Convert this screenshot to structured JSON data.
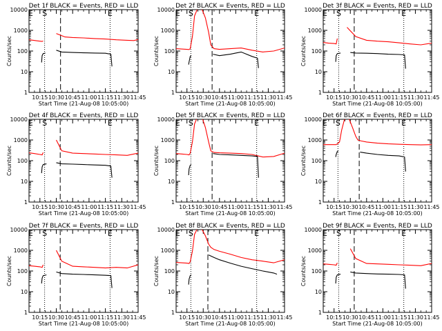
{
  "figure": {
    "x_tick_labels": [
      "10:15",
      "10:30",
      "10:45",
      "11:00",
      "11:15",
      "11:30",
      "11:45"
    ],
    "xlabel": "Start Time (21-Aug-08 10:05:00)",
    "ylabel": "Counts/sec",
    "y_tick_labels": [
      "1",
      "10",
      "100",
      "1000",
      "10000"
    ]
  },
  "chart_data": [
    {
      "type": "line",
      "title": "Det 1f BLACK = Events, RED = LLD",
      "series": [
        {
          "color": "#ff0000",
          "x": [
            0,
            4,
            8,
            10,
            12,
            13,
            20,
            25,
            33,
            40,
            50,
            60,
            70,
            80,
            90,
            96,
            100
          ],
          "y": [
            350,
            330,
            310,
            300,
            290,
            310,
            null,
            700,
            480,
            450,
            430,
            400,
            380,
            350,
            330,
            320,
            360
          ]
        },
        {
          "color": "#000000",
          "x": [
            11.5,
            12,
            13,
            15,
            20,
            25,
            30,
            40,
            50,
            60,
            70,
            75,
            76
          ],
          "y": [
            28,
            60,
            75,
            80,
            null,
            110,
            90,
            85,
            82,
            80,
            78,
            70,
            18
          ]
        }
      ],
      "markers": {
        "dotted": [
          14.3,
          74.3
        ],
        "dashed": [
          28.9
        ]
      },
      "labels": [
        "E",
        "S",
        "E"
      ]
    },
    {
      "type": "line",
      "title": "Det 2f BLACK = Events, RED = LLD",
      "series": [
        {
          "color": "#ff0000",
          "x": [
            0,
            5,
            10,
            12,
            13,
            15,
            17,
            20,
            24,
            27,
            30,
            32,
            35,
            40,
            50,
            60,
            70,
            80,
            90,
            100
          ],
          "y": [
            130,
            125,
            120,
            118,
            130,
            500,
            5000,
            12000,
            10000,
            4000,
            800,
            200,
            130,
            120,
            130,
            140,
            110,
            90,
            100,
            140
          ]
        },
        {
          "color": "#000000",
          "x": [
            11.5,
            12,
            13,
            14,
            null,
            34,
            40,
            50,
            55,
            60,
            70,
            75,
            76
          ],
          "y": [
            22,
            30,
            55,
            60,
            null,
            70,
            60,
            70,
            80,
            90,
            55,
            45,
            15
          ]
        }
      ],
      "markers": {
        "dotted": [
          13.6,
          74.3
        ],
        "dashed": [
          33.2
        ]
      },
      "labels": [
        "E",
        "S",
        "E"
      ]
    },
    {
      "type": "line",
      "title": "Det 3f BLACK = Events, RED = LLD",
      "series": [
        {
          "color": "#ff0000",
          "x": [
            0,
            5,
            10,
            12,
            13,
            20,
            22,
            30,
            40,
            50,
            60,
            70,
            80,
            90,
            100
          ],
          "y": [
            260,
            240,
            230,
            220,
            400,
            null,
            1400,
            500,
            330,
            300,
            280,
            250,
            220,
            200,
            240
          ]
        },
        {
          "color": "#000000",
          "x": [
            11.5,
            12,
            13,
            16,
            null,
            25,
            30,
            40,
            50,
            60,
            70,
            75,
            76
          ],
          "y": [
            30,
            60,
            75,
            80,
            null,
            85,
            80,
            78,
            75,
            70,
            68,
            65,
            14
          ]
        }
      ],
      "markers": {
        "dotted": [
          14.3,
          74.3
        ],
        "dashed": [
          28.6
        ]
      },
      "labels": [
        "E",
        "S",
        "E"
      ]
    },
    {
      "type": "line",
      "title": "Det 4f BLACK = Events, RED = LLD",
      "series": [
        {
          "color": "#ff0000",
          "x": [
            0,
            5,
            10,
            12,
            13,
            20,
            25,
            30,
            40,
            50,
            60,
            70,
            80,
            90,
            100
          ],
          "y": [
            240,
            220,
            200,
            190,
            250,
            null,
            1000,
            300,
            230,
            220,
            210,
            200,
            190,
            180,
            230
          ]
        },
        {
          "color": "#000000",
          "x": [
            11.5,
            12,
            13,
            16,
            null,
            25,
            30,
            40,
            50,
            60,
            70,
            75,
            76
          ],
          "y": [
            25,
            50,
            65,
            70,
            null,
            80,
            70,
            68,
            65,
            62,
            60,
            55,
            15
          ]
        }
      ],
      "markers": {
        "dotted": [
          14.3,
          74.3
        ],
        "dashed": [
          28.6
        ]
      },
      "labels": [
        "E",
        "S",
        "E"
      ]
    },
    {
      "type": "line",
      "title": "Det 5f BLACK = Events, RED = LLD",
      "series": [
        {
          "color": "#ff0000",
          "x": [
            0,
            5,
            10,
            12,
            13,
            15,
            17,
            20,
            24,
            27,
            30,
            32,
            35,
            40,
            50,
            60,
            70,
            80,
            90,
            100
          ],
          "y": [
            220,
            210,
            200,
            190,
            230,
            800,
            6000,
            14000,
            12000,
            4000,
            800,
            300,
            250,
            240,
            230,
            220,
            200,
            150,
            160,
            230
          ]
        },
        {
          "color": "#000000",
          "x": [
            11.5,
            12,
            13,
            14,
            null,
            34,
            40,
            50,
            60,
            70,
            75,
            76
          ],
          "y": [
            20,
            40,
            60,
            65,
            null,
            220,
            200,
            190,
            180,
            170,
            160,
            15
          ]
        }
      ],
      "markers": {
        "dotted": [
          13.6,
          74.3
        ],
        "dashed": [
          33.2
        ]
      },
      "labels": [
        "E",
        "S",
        "E"
      ]
    },
    {
      "type": "line",
      "title": "Det 6f BLACK = Events, RED = LLD",
      "series": [
        {
          "color": "#ff0000",
          "x": [
            0,
            5,
            10,
            12,
            13,
            15,
            17,
            20,
            24,
            27,
            30,
            32,
            35,
            40,
            50,
            60,
            70,
            80,
            90,
            100
          ],
          "y": [
            600,
            600,
            600,
            600,
            650,
            800,
            3000,
            12000,
            10000,
            4000,
            1500,
            1000,
            900,
            800,
            700,
            650,
            620,
            600,
            580,
            600
          ]
        },
        {
          "color": "#000000",
          "x": [
            11.5,
            12,
            13,
            14,
            null,
            34,
            40,
            50,
            60,
            70,
            75,
            76
          ],
          "y": [
            150,
            200,
            280,
            300,
            null,
            260,
            230,
            200,
            180,
            170,
            150,
            30
          ]
        }
      ],
      "markers": {
        "dotted": [
          13.6,
          74.3
        ],
        "dashed": [
          33.2
        ]
      },
      "labels": [
        "E",
        "S",
        "E"
      ]
    },
    {
      "type": "line",
      "title": "Det 7f BLACK = Events, RED = LLD",
      "series": [
        {
          "color": "#ff0000",
          "x": [
            0,
            5,
            10,
            12,
            13,
            20,
            25,
            30,
            40,
            50,
            60,
            70,
            80,
            90,
            100
          ],
          "y": [
            180,
            170,
            160,
            150,
            200,
            null,
            1000,
            300,
            170,
            160,
            150,
            140,
            150,
            140,
            200
          ]
        },
        {
          "color": "#000000",
          "x": [
            11.5,
            12,
            13,
            16,
            null,
            25,
            30,
            40,
            50,
            60,
            70,
            75,
            76
          ],
          "y": [
            25,
            45,
            60,
            65,
            null,
            90,
            75,
            70,
            68,
            65,
            62,
            60,
            15
          ]
        }
      ],
      "markers": {
        "dotted": [
          14.3,
          74.3
        ],
        "dashed": [
          28.6
        ]
      },
      "labels": [
        "E",
        "S",
        "E"
      ]
    },
    {
      "type": "line",
      "title": "Det 8f BLACK = Events, RED = LLD",
      "series": [
        {
          "color": "#ff0000",
          "x": [
            0,
            5,
            10,
            12,
            13,
            15,
            17,
            20,
            24,
            27,
            30,
            32,
            35,
            40,
            50,
            60,
            70,
            80,
            90,
            100
          ],
          "y": [
            260,
            250,
            240,
            230,
            280,
            900,
            6000,
            12000,
            10000,
            5000,
            2000,
            1400,
            1100,
            900,
            650,
            450,
            350,
            300,
            250,
            350
          ]
        },
        {
          "color": "#000000",
          "x": [
            11.5,
            12,
            13,
            14,
            null,
            30,
            35,
            40,
            50,
            60,
            70,
            80,
            90,
            93
          ],
          "y": [
            22,
            40,
            60,
            65,
            null,
            600,
            450,
            350,
            240,
            170,
            130,
            100,
            80,
            70
          ]
        }
      ],
      "markers": {
        "dotted": [
          13.6,
          74.3
        ],
        "dashed": [
          29.3
        ]
      },
      "labels": [
        "E",
        "S",
        "E"
      ]
    },
    {
      "type": "line",
      "title": "Det 9f BLACK = Events, RED = LLD",
      "series": [
        {
          "color": "#ff0000",
          "x": [
            0,
            5,
            10,
            12,
            13,
            20,
            25,
            30,
            40,
            50,
            60,
            70,
            80,
            90,
            100
          ],
          "y": [
            220,
            210,
            200,
            190,
            250,
            null,
            1200,
            400,
            230,
            220,
            210,
            200,
            190,
            180,
            230
          ]
        },
        {
          "color": "#000000",
          "x": [
            11.5,
            12,
            13,
            16,
            null,
            25,
            30,
            40,
            50,
            60,
            70,
            75,
            76
          ],
          "y": [
            25,
            50,
            65,
            70,
            null,
            90,
            80,
            75,
            72,
            70,
            68,
            65,
            14
          ]
        }
      ],
      "markers": {
        "dotted": [
          14.3,
          74.3
        ],
        "dashed": [
          28.6
        ]
      },
      "labels": [
        "E",
        "S",
        "E"
      ]
    }
  ]
}
